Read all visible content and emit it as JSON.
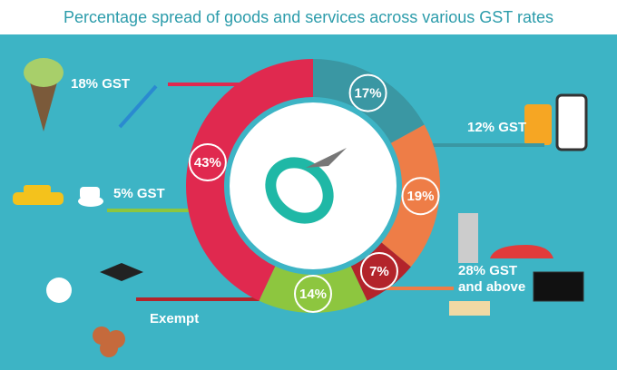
{
  "chart_data": {
    "type": "donut",
    "title": "Percentage spread of goods and services across various GST rates",
    "categories": [
      "12% GST",
      "28% GST and above",
      "Exempt",
      "5% GST",
      "18% GST"
    ],
    "values": [
      17,
      19,
      7,
      14,
      43
    ],
    "value_labels": [
      "17%",
      "19%",
      "7%",
      "14%",
      "43%"
    ],
    "colors": [
      "#3a97a3",
      "#ee7d47",
      "#b3242b",
      "#8dc63f",
      "#e0294f"
    ]
  }
}
